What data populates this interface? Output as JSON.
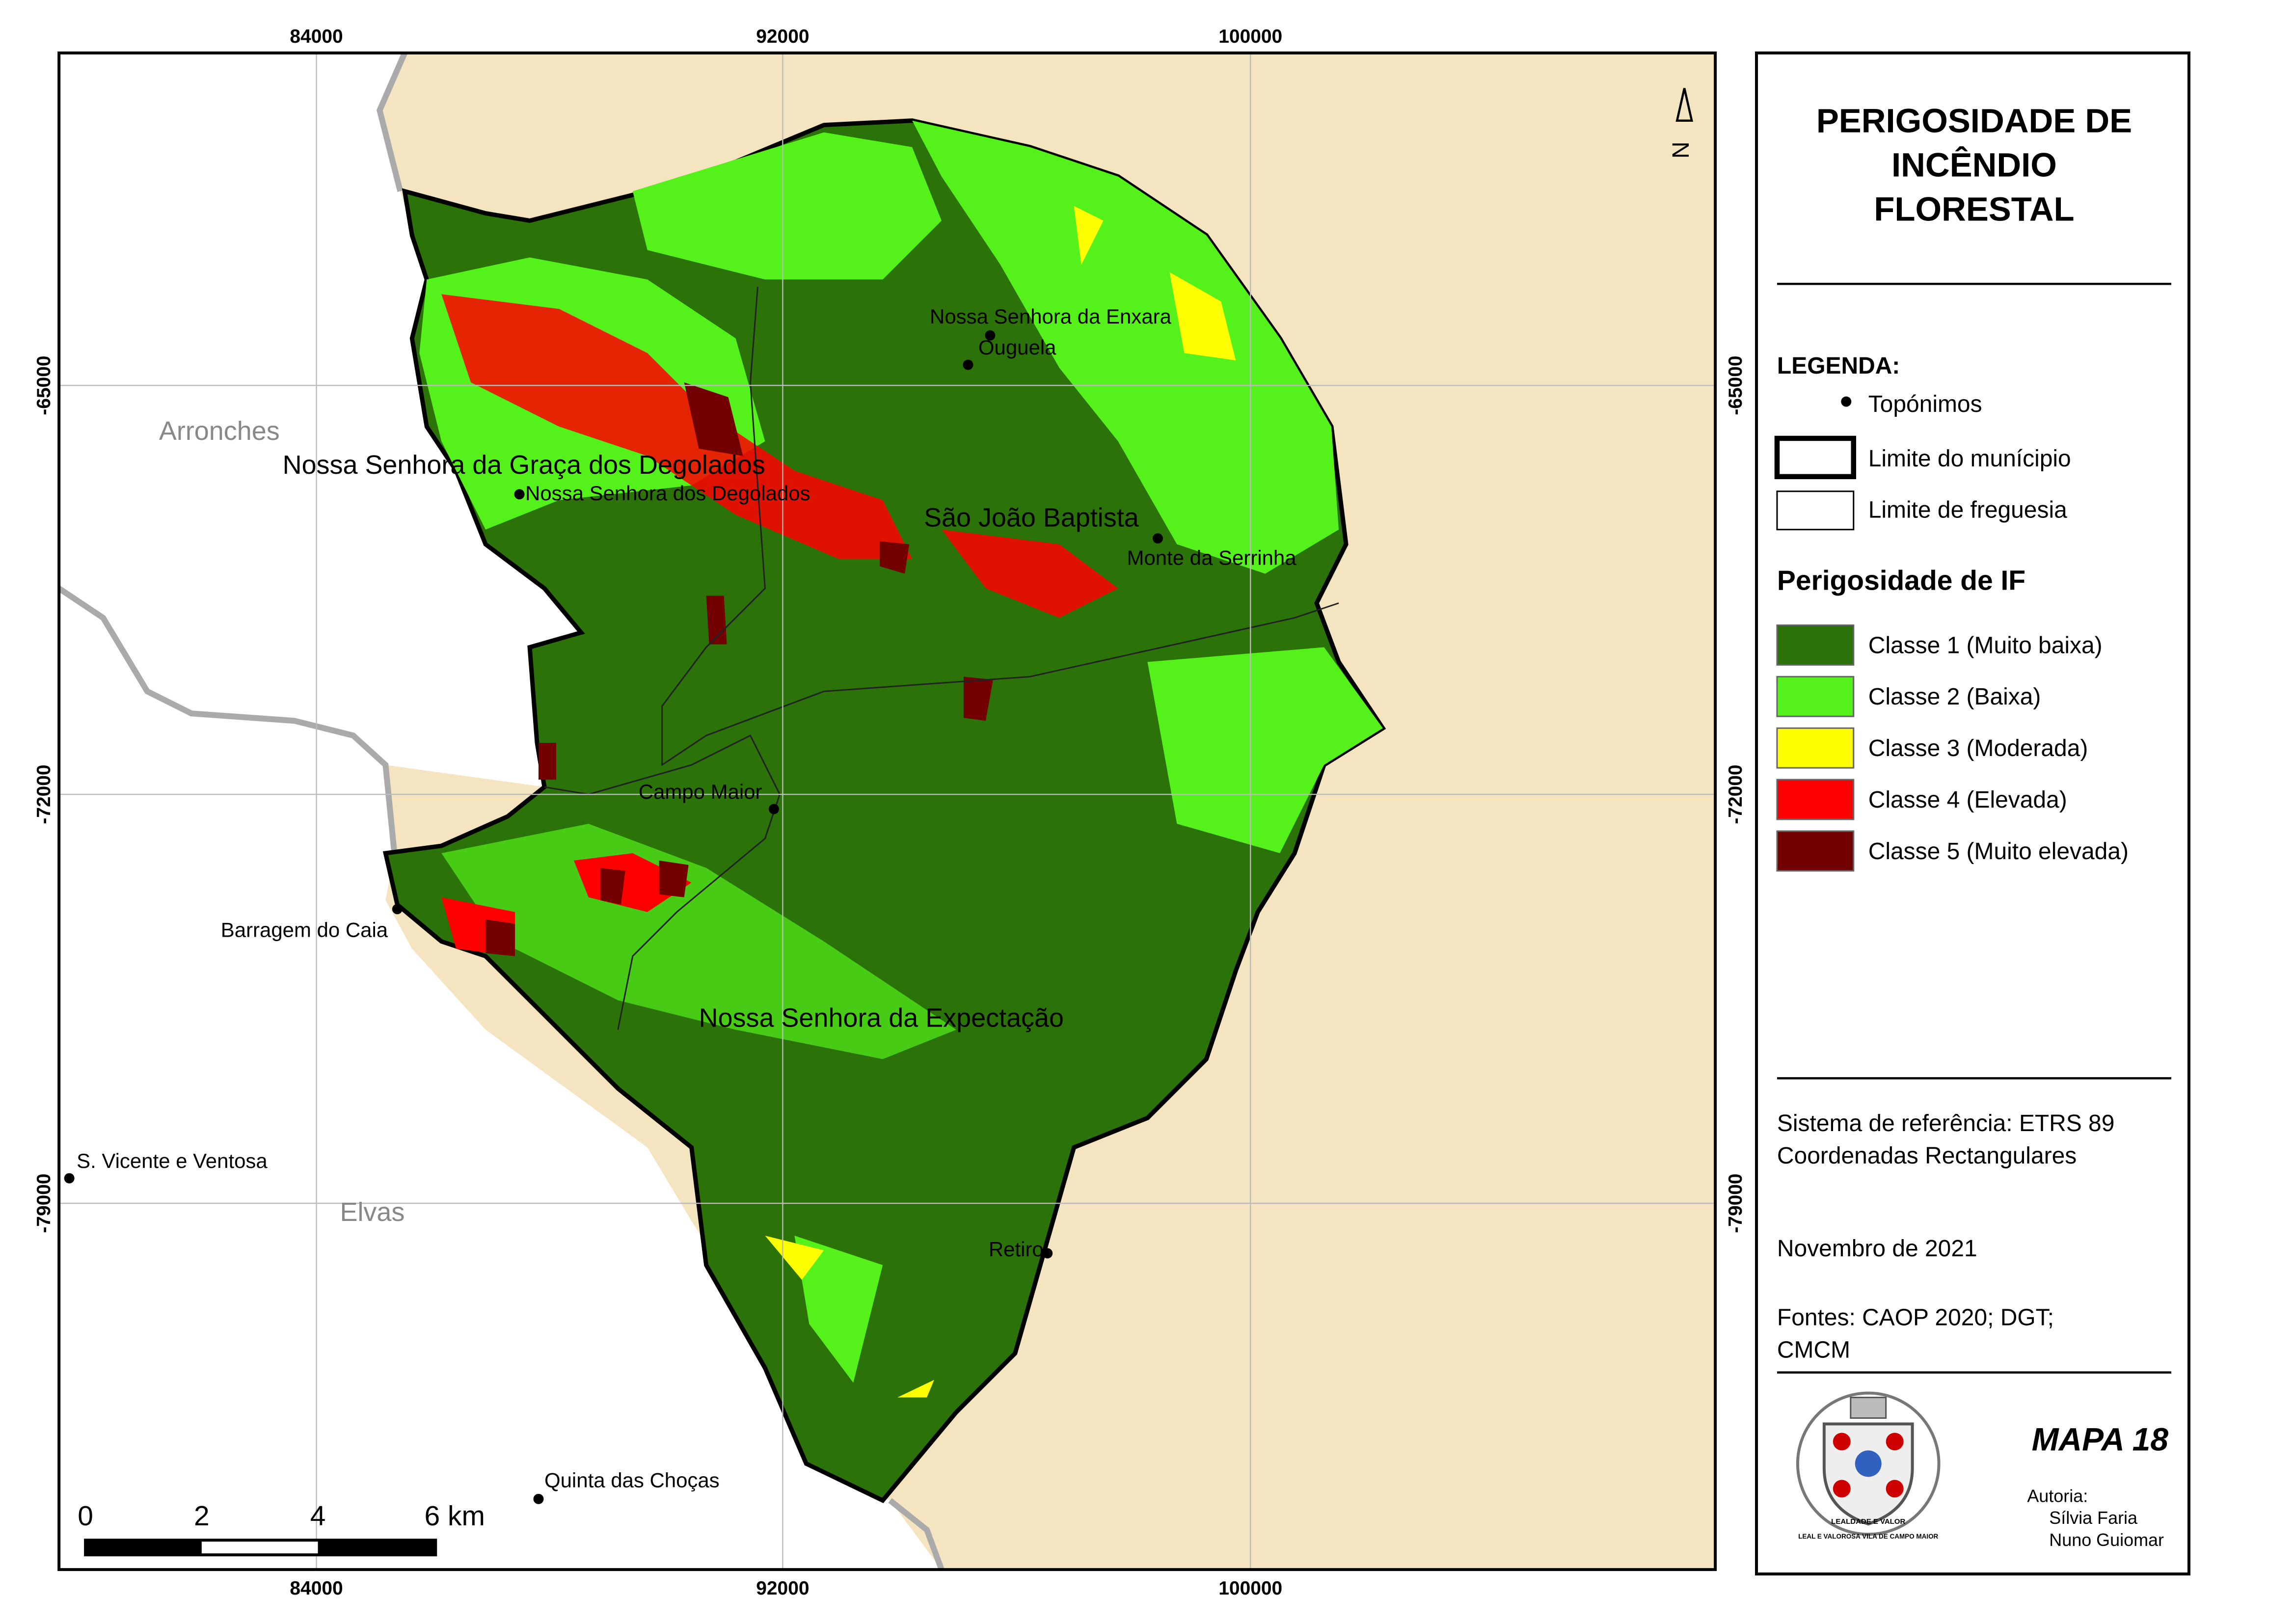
{
  "title": [
    "PERIGOSIDADE DE",
    "INCÊNDIO",
    "FLORESTAL"
  ],
  "legend": {
    "heading": "LEGENDA:",
    "symbols": [
      "Topónimos",
      "Limite do munícipio",
      "Limite de freguesia"
    ],
    "hazard_heading": "Perigosidade de IF",
    "classes": [
      {
        "label": "Classe 1 (Muito baixa)",
        "color": "#2b7209"
      },
      {
        "label": "Classe 2 (Baixa)",
        "color": "#55f11a"
      },
      {
        "label": "Classe 3 (Moderada)",
        "color": "#ffff00"
      },
      {
        "label": "Classe 4 (Elevada)",
        "color": "#ff0000"
      },
      {
        "label": "Classe 5 (Muito elevada)",
        "color": "#720000"
      }
    ]
  },
  "reference": [
    "Sistema de referência: ETRS 89",
    "Coordenadas Rectangulares"
  ],
  "date": "Novembro de 2021",
  "sources": [
    "Fontes: CAOP 2020; DGT;",
    "CMCM"
  ],
  "map_number": "MAPA 18",
  "authorship": {
    "label": "Autoria:",
    "authors": [
      "Sílvia Faria",
      "Nuno Guiomar"
    ]
  },
  "emblem": [
    "LEALDADE E VALOR",
    "LEAL E VALOROSA VILA DE CAMPO MAIOR"
  ],
  "map": {
    "x_coords": [
      "84000",
      "92000",
      "100000"
    ],
    "y_coords": [
      "-65000",
      "-72000",
      "-79000"
    ],
    "north": "N",
    "municipalities": [
      "Arronches",
      "Elvas"
    ],
    "parishes": [
      "Nossa Senhora da Graça dos Degolados",
      "São João Baptista",
      "Nossa Senhora da Expectação"
    ],
    "places": [
      "Nossa Senhora da Enxara",
      "Ouguela",
      "Nossa Senhora dos Degolados",
      "Monte da Serrinha",
      "Campo Maior",
      "Barragem do Caia",
      "S. Vicente e Ventosa",
      "Quinta das Choças",
      "Retiro"
    ],
    "scale_bar": [
      "0",
      "2",
      "4",
      "6 km"
    ]
  }
}
